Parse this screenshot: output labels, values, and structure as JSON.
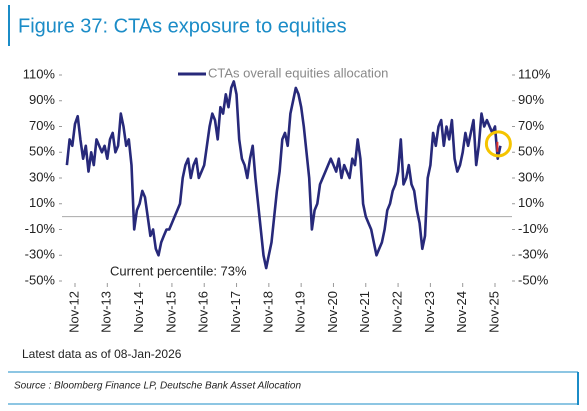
{
  "chart_data": {
    "type": "line",
    "title": "Figure 37: CTAs exposure to equities",
    "annotations": [
      "Current percentile: 73%",
      "Latest data as of 08-Jan-2026",
      "Source : Bloomberg Finance LP, Deutsche Bank Asset Allocation"
    ],
    "legend": "top",
    "x": [
      "2012-08",
      "2012-09",
      "2012-10",
      "2012-11",
      "2012-12",
      "2013-01",
      "2013-02",
      "2013-03",
      "2013-04",
      "2013-05",
      "2013-06",
      "2013-07",
      "2013-08",
      "2013-09",
      "2013-10",
      "2013-11",
      "2013-12",
      "2014-01",
      "2014-02",
      "2014-03",
      "2014-04",
      "2014-05",
      "2014-06",
      "2014-07",
      "2014-08",
      "2014-09",
      "2014-10",
      "2014-11",
      "2014-12",
      "2015-01",
      "2015-02",
      "2015-03",
      "2015-04",
      "2015-05",
      "2015-06",
      "2015-07",
      "2015-08",
      "2015-09",
      "2015-10",
      "2015-11",
      "2015-12",
      "2016-01",
      "2016-02",
      "2016-03",
      "2016-04",
      "2016-05",
      "2016-06",
      "2016-07",
      "2016-08",
      "2016-09",
      "2016-10",
      "2016-11",
      "2016-12",
      "2017-01",
      "2017-02",
      "2017-03",
      "2017-04",
      "2017-05",
      "2017-06",
      "2017-07",
      "2017-08",
      "2017-09",
      "2017-10",
      "2017-11",
      "2017-12",
      "2018-01",
      "2018-02",
      "2018-03",
      "2018-04",
      "2018-05",
      "2018-06",
      "2018-07",
      "2018-08",
      "2018-09",
      "2018-10",
      "2018-11",
      "2018-12",
      "2019-01",
      "2019-02",
      "2019-03",
      "2019-04",
      "2019-05",
      "2019-06",
      "2019-07",
      "2019-08",
      "2019-09",
      "2019-10",
      "2019-11",
      "2019-12",
      "2020-01",
      "2020-02",
      "2020-03",
      "2020-04",
      "2020-05",
      "2020-06",
      "2020-07",
      "2020-08",
      "2020-09",
      "2020-10",
      "2020-11",
      "2020-12",
      "2021-01",
      "2021-02",
      "2021-03",
      "2021-04",
      "2021-05",
      "2021-06",
      "2021-07",
      "2021-08",
      "2021-09",
      "2021-10",
      "2021-11",
      "2021-12",
      "2022-01",
      "2022-02",
      "2022-03",
      "2022-04",
      "2022-05",
      "2022-06",
      "2022-07",
      "2022-08",
      "2022-09",
      "2022-10",
      "2022-11",
      "2022-12",
      "2023-01",
      "2023-02",
      "2023-03",
      "2023-04",
      "2023-05",
      "2023-06",
      "2023-07",
      "2023-08",
      "2023-09",
      "2023-10",
      "2023-11",
      "2023-12",
      "2024-01",
      "2024-02",
      "2024-03",
      "2024-04",
      "2024-05",
      "2024-06",
      "2024-07",
      "2024-08",
      "2024-09",
      "2024-10",
      "2024-11",
      "2024-12",
      "2025-01",
      "2025-02",
      "2025-03",
      "2025-04",
      "2025-05",
      "2025-06",
      "2025-07",
      "2025-08",
      "2025-09",
      "2025-10",
      "2025-11",
      "2025-12",
      "2026-01"
    ],
    "series": [
      {
        "name": "CTAs overall equities allocation",
        "color": "#27297a",
        "values": [
          40,
          60,
          55,
          72,
          78,
          60,
          45,
          55,
          35,
          50,
          40,
          60,
          55,
          50,
          55,
          45,
          60,
          65,
          50,
          55,
          80,
          70,
          55,
          60,
          40,
          -10,
          5,
          10,
          20,
          15,
          0,
          -15,
          -10,
          -25,
          -30,
          -20,
          -15,
          -10,
          -10,
          -5,
          0,
          5,
          10,
          30,
          40,
          45,
          30,
          40,
          45,
          30,
          35,
          40,
          55,
          70,
          80,
          75,
          60,
          85,
          80,
          95,
          85,
          100,
          105,
          95,
          60,
          45,
          40,
          30,
          45,
          55,
          30,
          10,
          -10,
          -30,
          -40,
          -30,
          -20,
          0,
          20,
          35,
          60,
          65,
          55,
          80,
          90,
          100,
          95,
          85,
          70,
          50,
          30,
          -10,
          5,
          10,
          25,
          30,
          35,
          40,
          45,
          40,
          35,
          45,
          30,
          40,
          35,
          30,
          45,
          40,
          60,
          45,
          10,
          0,
          -5,
          -10,
          -20,
          -30,
          -25,
          -20,
          -10,
          5,
          10,
          20,
          25,
          35,
          60,
          25,
          30,
          40,
          25,
          20,
          5,
          -5,
          -25,
          -15,
          30,
          40,
          65,
          55,
          70,
          75,
          55,
          70,
          60,
          75,
          45,
          35,
          40,
          50,
          65,
          55,
          65,
          75,
          40,
          55,
          80,
          70,
          75,
          70,
          65,
          70,
          45,
          55
        ]
      }
    ],
    "xticks": [
      {
        "value": "2012-11",
        "label": "Nov-12"
      },
      {
        "value": "2013-11",
        "label": "Nov-13"
      },
      {
        "value": "2014-11",
        "label": "Nov-14"
      },
      {
        "value": "2015-11",
        "label": "Nov-15"
      },
      {
        "value": "2016-11",
        "label": "Nov-16"
      },
      {
        "value": "2017-11",
        "label": "Nov-17"
      },
      {
        "value": "2018-11",
        "label": "Nov-18"
      },
      {
        "value": "2019-11",
        "label": "Nov-19"
      },
      {
        "value": "2020-11",
        "label": "Nov-20"
      },
      {
        "value": "2021-11",
        "label": "Nov-21"
      },
      {
        "value": "2022-11",
        "label": "Nov-22"
      },
      {
        "value": "2023-11",
        "label": "Nov-23"
      },
      {
        "value": "2024-11",
        "label": "Nov-24"
      },
      {
        "value": "2025-11",
        "label": "Nov-25"
      }
    ],
    "ylim": [
      -50,
      110
    ],
    "yticks": [
      {
        "value": 110,
        "label": "110%"
      },
      {
        "value": 90,
        "label": "90%"
      },
      {
        "value": 70,
        "label": "70%"
      },
      {
        "value": 50,
        "label": "50%"
      },
      {
        "value": 30,
        "label": "30%"
      },
      {
        "value": 10,
        "label": "10%"
      },
      {
        "value": -10,
        "label": "-10%"
      },
      {
        "value": -30,
        "label": "-30%"
      },
      {
        "value": -50,
        "label": "-50%"
      }
    ],
    "y2lim": [
      -50,
      110
    ],
    "y2ticks": [
      {
        "value": 110,
        "label": "110%"
      },
      {
        "value": 90,
        "label": "90%"
      },
      {
        "value": 70,
        "label": "70%"
      },
      {
        "value": 50,
        "label": "50%"
      },
      {
        "value": 30,
        "label": "30%"
      },
      {
        "value": 10,
        "label": "10%"
      },
      {
        "value": -10,
        "label": "-10%"
      },
      {
        "value": -30,
        "label": "-30%"
      },
      {
        "value": -50,
        "label": "-50%"
      }
    ]
  }
}
